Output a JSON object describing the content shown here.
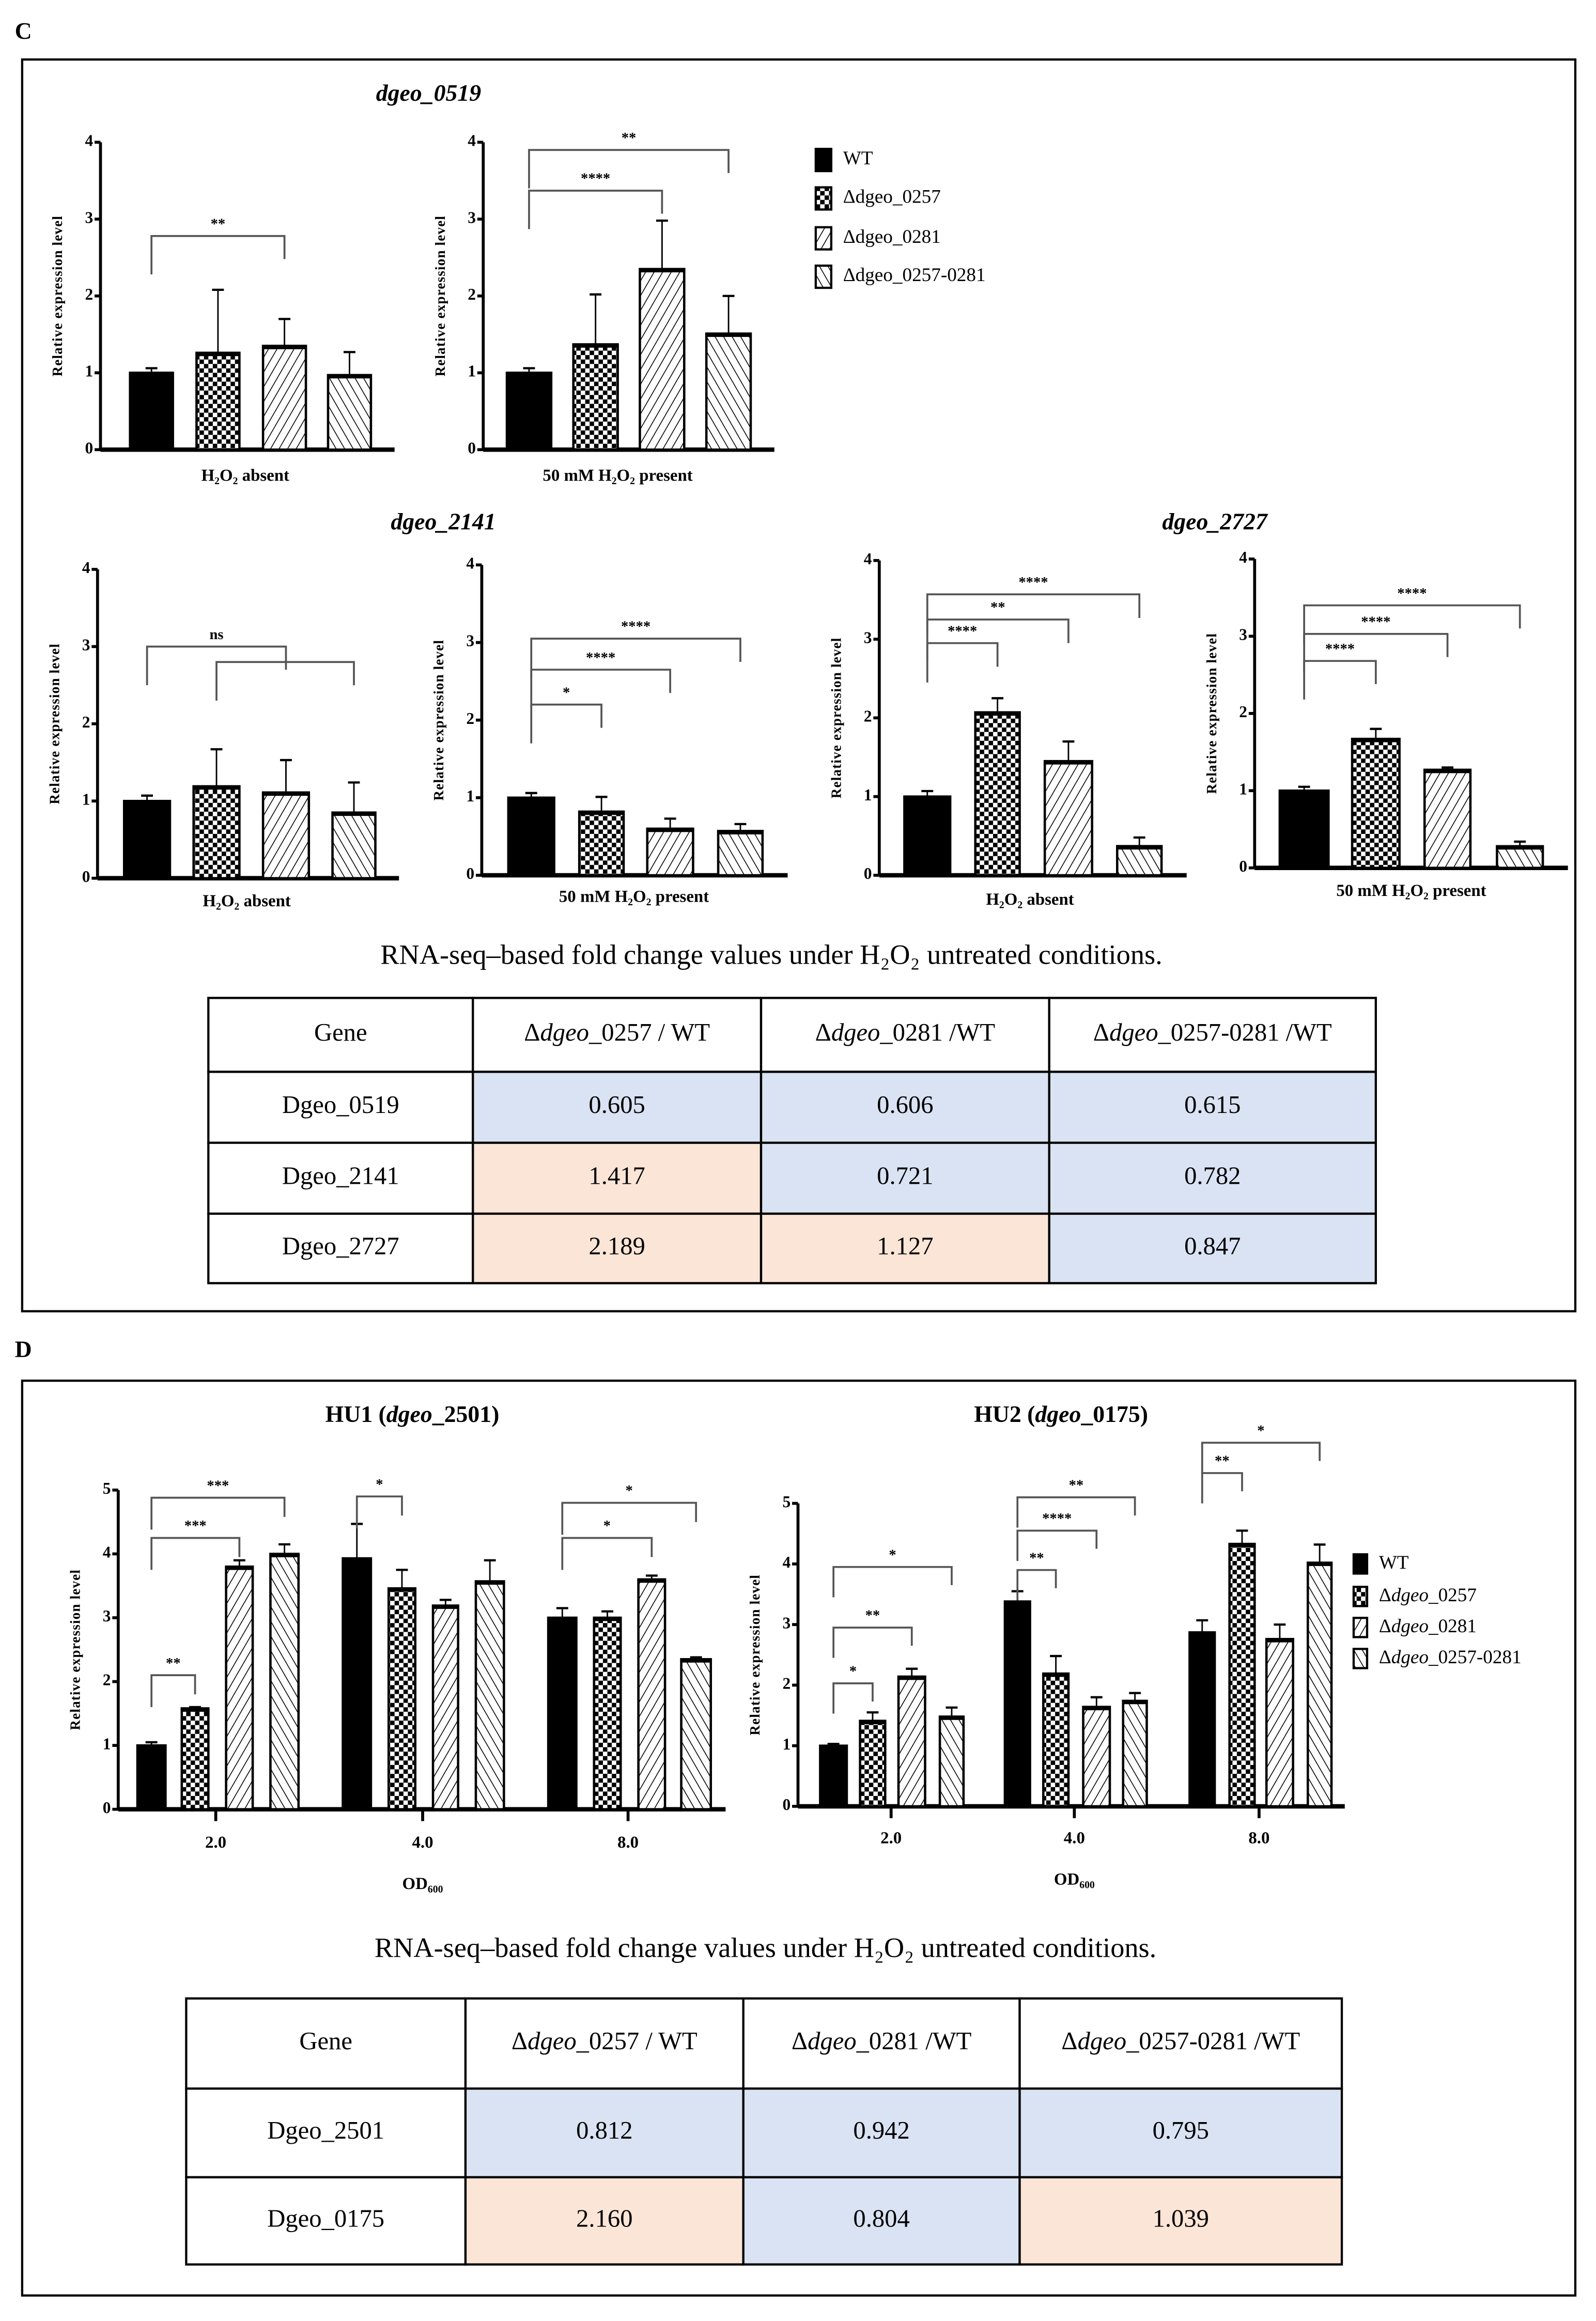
{
  "colors": {
    "blue": "#dae3f3",
    "orange": "#fbe5d6",
    "bar_outline": "#000000"
  },
  "legend": [
    {
      "prefix": "",
      "italic": "",
      "rest": "WT",
      "pattern": "solid-black"
    },
    {
      "prefix": "Δ",
      "italic": "dgeo",
      "rest": "_0257",
      "pattern": "checkerboard"
    },
    {
      "prefix": "Δ",
      "italic": "dgeo",
      "rest": "_0281",
      "pattern": "forward-diagonal-hatch"
    },
    {
      "prefix": "Δ",
      "italic": "dgeo",
      "rest": "_0257-0281",
      "pattern": "backward-diagonal-hatch"
    }
  ],
  "panel_c": {
    "label": "C",
    "titles": {
      "g0519": "dgeo_0519",
      "g2141": "dgeo_2141",
      "g2727": "dgeo_2727"
    },
    "caption": "RNA-seq–based fold change values under H₂O₂ untreated conditions.",
    "table": {
      "headers": [
        {
          "prefix": "",
          "italic": "",
          "rest": "Gene"
        },
        {
          "prefix": "Δ",
          "italic": "dgeo",
          "rest": "_0257 / WT"
        },
        {
          "prefix": "Δ",
          "italic": "dgeo",
          "rest": "_0281 /WT"
        },
        {
          "prefix": "Δ",
          "italic": "dgeo",
          "rest": "_0257-0281 /WT"
        }
      ],
      "rows": [
        {
          "gene": "Dgeo_0519",
          "values": [
            "0.605",
            "0.606",
            "0.615"
          ],
          "fills": [
            "blue",
            "blue",
            "blue"
          ]
        },
        {
          "gene": "Dgeo_2141",
          "values": [
            "1.417",
            "0.721",
            "0.782"
          ],
          "fills": [
            "orange",
            "blue",
            "blue"
          ]
        },
        {
          "gene": "Dgeo_2727",
          "values": [
            "2.189",
            "1.127",
            "0.847"
          ],
          "fills": [
            "orange",
            "orange",
            "blue"
          ]
        }
      ]
    }
  },
  "panel_d": {
    "label": "D",
    "caption": "RNA-seq–based fold change values under H₂O₂ untreated conditions.",
    "table": {
      "headers": [
        {
          "prefix": "",
          "italic": "",
          "rest": "Gene"
        },
        {
          "prefix": "Δ",
          "italic": "dgeo",
          "rest": "_0257 / WT"
        },
        {
          "prefix": "Δ",
          "italic": "dgeo",
          "rest": "_0281 /WT"
        },
        {
          "prefix": "Δ",
          "italic": "dgeo",
          "rest": "_0257-0281 /WT"
        }
      ],
      "rows": [
        {
          "gene": "Dgeo_2501",
          "values": [
            "0.812",
            "0.942",
            "0.795"
          ],
          "fills": [
            "blue",
            "blue",
            "blue"
          ]
        },
        {
          "gene": "Dgeo_0175",
          "values": [
            "2.160",
            "0.804",
            "1.039"
          ],
          "fills": [
            "orange",
            "blue",
            "orange"
          ]
        }
      ]
    }
  },
  "chart_data": [
    {
      "id": "c_0519_absent",
      "type": "bar",
      "title": "",
      "xlabel": "H₂O₂ absent",
      "ylabel": "Relative expression level",
      "ylim": [
        0,
        4
      ],
      "yticks": [
        "0",
        "1",
        "2",
        "3",
        "4"
      ],
      "series_names": [
        "WT",
        "Δdgeo_0257",
        "Δdgeo_0281",
        "Δdgeo_0257-0281"
      ],
      "values": [
        1.0,
        1.26,
        1.35,
        0.97
      ],
      "error_upper": [
        1.06,
        2.08,
        1.7,
        1.27
      ],
      "significance": [
        {
          "from": 0,
          "to": 2,
          "label": "**",
          "y": 2.78
        }
      ]
    },
    {
      "id": "c_0519_present",
      "type": "bar",
      "title": "",
      "xlabel": "50 mM H₂O₂ present",
      "ylabel": "Relative expression level",
      "ylim": [
        0,
        4
      ],
      "yticks": [
        "0",
        "1",
        "2",
        "3",
        "4"
      ],
      "values": [
        1.0,
        1.37,
        2.35,
        1.51
      ],
      "error_upper": [
        1.06,
        2.02,
        2.98,
        2.0
      ],
      "significance": [
        {
          "from": 0,
          "to": 2,
          "label": "****",
          "y": 3.37
        },
        {
          "from": 0,
          "to": 3,
          "label": "**",
          "y": 3.9
        }
      ]
    },
    {
      "id": "c_2141_absent",
      "type": "bar",
      "title": "",
      "xlabel": "H₂O₂ absent",
      "ylabel": "Relative expression level",
      "ylim": [
        0,
        4
      ],
      "yticks": [
        "0",
        "1",
        "2",
        "3",
        "4"
      ],
      "values": [
        1.0,
        1.19,
        1.11,
        0.85
      ],
      "error_upper": [
        1.07,
        1.67,
        1.53,
        1.24
      ],
      "significance": [
        {
          "from": 0,
          "to": 2,
          "label": "ns",
          "y": 3.0
        },
        {
          "from": 1,
          "to": 3,
          "label": "",
          "y": 2.8
        }
      ]
    },
    {
      "id": "c_2141_present",
      "type": "bar",
      "title": "",
      "xlabel": "50 mM H₂O₂ present",
      "ylabel": "Relative expression level",
      "ylim": [
        0,
        4
      ],
      "yticks": [
        "0",
        "1",
        "2",
        "3",
        "4"
      ],
      "values": [
        1.0,
        0.82,
        0.6,
        0.57
      ],
      "error_upper": [
        1.06,
        1.01,
        0.73,
        0.66
      ],
      "significance": [
        {
          "from": 0,
          "to": 1,
          "label": "*",
          "y": 2.2
        },
        {
          "from": 0,
          "to": 2,
          "label": "****",
          "y": 2.65
        },
        {
          "from": 0,
          "to": 3,
          "label": "****",
          "y": 3.05
        }
      ]
    },
    {
      "id": "c_2727_absent",
      "type": "bar",
      "title": "",
      "xlabel": "H₂O₂ absent",
      "ylabel": "Relative expression level",
      "ylim": [
        0,
        4
      ],
      "yticks": [
        "0",
        "1",
        "2",
        "3",
        "4"
      ],
      "values": [
        1.0,
        2.07,
        1.45,
        0.37
      ],
      "error_upper": [
        1.07,
        2.25,
        1.7,
        0.48
      ],
      "significance": [
        {
          "from": 0,
          "to": 1,
          "label": "****",
          "y": 2.95
        },
        {
          "from": 0,
          "to": 2,
          "label": "**",
          "y": 3.25
        },
        {
          "from": 0,
          "to": 3,
          "label": "****",
          "y": 3.57
        }
      ]
    },
    {
      "id": "c_2727_present",
      "type": "bar",
      "title": "",
      "xlabel": "50 mM H₂O₂ present",
      "ylabel": "Relative expression level",
      "ylim": [
        0,
        4
      ],
      "yticks": [
        "0",
        "1",
        "2",
        "3",
        "4"
      ],
      "values": [
        1.0,
        1.67,
        1.27,
        0.28
      ],
      "error_upper": [
        1.05,
        1.8,
        1.3,
        0.34
      ],
      "significance": [
        {
          "from": 0,
          "to": 1,
          "label": "****",
          "y": 2.68
        },
        {
          "from": 0,
          "to": 2,
          "label": "****",
          "y": 3.03
        },
        {
          "from": 0,
          "to": 3,
          "label": "****",
          "y": 3.4
        }
      ]
    },
    {
      "id": "d_hu1",
      "type": "bar",
      "title": "HU1 (dgeo_2501)",
      "title_parts": {
        "pre": "HU1 (",
        "italic": "dgeo",
        "post": "_2501)"
      },
      "xlabel": "OD₆₀₀",
      "ylabel": "Relative expression level",
      "ylim": [
        0,
        5
      ],
      "yticks": [
        "0",
        "1",
        "2",
        "3",
        "4",
        "5"
      ],
      "categories": [
        "2.0",
        "4.0",
        "8.0"
      ],
      "series": [
        {
          "name": "WT",
          "values": [
            1.0,
            3.93,
            3.0
          ],
          "error_upper": [
            1.05,
            4.47,
            3.15
          ]
        },
        {
          "name": "Δdgeo_0257",
          "values": [
            1.58,
            3.46,
            3.0
          ],
          "error_upper": [
            1.6,
            3.75,
            3.1
          ]
        },
        {
          "name": "Δdgeo_0281",
          "values": [
            3.8,
            3.19,
            3.6
          ],
          "error_upper": [
            3.9,
            3.28,
            3.66
          ]
        },
        {
          "name": "Δdgeo_0257-0281",
          "values": [
            4.0,
            3.57,
            2.35
          ],
          "error_upper": [
            4.15,
            3.9,
            2.38
          ]
        }
      ],
      "significance": [
        {
          "category": "2.0",
          "from": 0,
          "to": 1,
          "label": "**",
          "y": 2.1
        },
        {
          "category": "2.0",
          "from": 0,
          "to": 2,
          "label": "***",
          "y": 4.25
        },
        {
          "category": "2.0",
          "from": 0,
          "to": 3,
          "label": "***",
          "y": 4.88
        },
        {
          "category": "4.0",
          "from": 0,
          "to": 1,
          "label": "*",
          "y": 4.9
        },
        {
          "category": "8.0",
          "from": 0,
          "to": 2,
          "label": "*",
          "y": 4.25
        },
        {
          "category": "8.0",
          "from": 0,
          "to": 3,
          "label": "*",
          "y": 4.8
        }
      ]
    },
    {
      "id": "d_hu2",
      "type": "bar",
      "title": "HU2 (dgeo_0175)",
      "title_parts": {
        "pre": "HU2 (",
        "italic": "dgeo",
        "post": "_0175)"
      },
      "xlabel": "OD₆₀₀",
      "ylabel": "Relative expression level",
      "ylim": [
        0,
        5
      ],
      "yticks": [
        "0",
        "1",
        "2",
        "3",
        "4",
        "5"
      ],
      "categories": [
        "2.0",
        "4.0",
        "8.0"
      ],
      "series": [
        {
          "name": "WT",
          "values": [
            1.0,
            3.38,
            2.87
          ],
          "error_upper": [
            1.03,
            3.55,
            3.07
          ]
        },
        {
          "name": "Δdgeo_0257",
          "values": [
            1.41,
            2.19,
            4.33
          ],
          "error_upper": [
            1.55,
            2.48,
            4.55
          ]
        },
        {
          "name": "Δdgeo_0281",
          "values": [
            2.14,
            1.64,
            2.76
          ],
          "error_upper": [
            2.27,
            1.8,
            3.0
          ]
        },
        {
          "name": "Δdgeo_0257-0281",
          "values": [
            1.48,
            1.74,
            4.02
          ],
          "error_upper": [
            1.63,
            1.87,
            4.32
          ]
        }
      ],
      "significance": [
        {
          "category": "2.0",
          "from": 0,
          "to": 1,
          "label": "*",
          "y": 2.03
        },
        {
          "category": "2.0",
          "from": 0,
          "to": 2,
          "label": "**",
          "y": 2.95
        },
        {
          "category": "2.0",
          "from": 0,
          "to": 3,
          "label": "*",
          "y": 3.95
        },
        {
          "category": "4.0",
          "from": 0,
          "to": 1,
          "label": "**",
          "y": 3.9
        },
        {
          "category": "4.0",
          "from": 0,
          "to": 2,
          "label": "****",
          "y": 4.55
        },
        {
          "category": "4.0",
          "from": 0,
          "to": 3,
          "label": "**",
          "y": 5.1
        },
        {
          "category": "8.0",
          "from": 0,
          "to": 1,
          "label": "**",
          "y": 5.5
        },
        {
          "category": "8.0",
          "from": 0,
          "to": 3,
          "label": "*",
          "y": 6.0
        }
      ]
    }
  ]
}
